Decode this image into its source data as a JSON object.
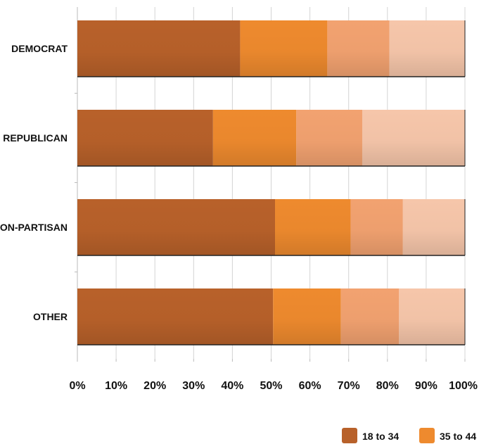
{
  "chart_data": {
    "type": "bar",
    "orientation": "horizontal",
    "stacked": true,
    "percent": true,
    "categories": [
      "DEMOCRAT",
      "REPUBLICAN",
      "NON-PARTISAN",
      "OTHER"
    ],
    "series": [
      {
        "name": "18 to 34",
        "values": [
          42,
          35,
          51,
          50.5
        ]
      },
      {
        "name": "35 to 44",
        "values": [
          22.5,
          21.5,
          19.5,
          17.5
        ]
      },
      {
        "values": [
          16,
          17,
          13.5,
          15
        ]
      },
      {
        "values": [
          19.5,
          26.5,
          16,
          17
        ]
      }
    ],
    "series_colors": [
      "#b8612a",
      "#ee8a2e",
      "#f2a270",
      "#f6c6aa"
    ],
    "xlim": [
      0,
      100
    ],
    "x_ticks": [
      "0%",
      "10%",
      "20%",
      "30%",
      "40%",
      "50%",
      "60%",
      "70%",
      "80%",
      "90%",
      "100%"
    ],
    "grid": true,
    "legend": "bottom-right"
  }
}
